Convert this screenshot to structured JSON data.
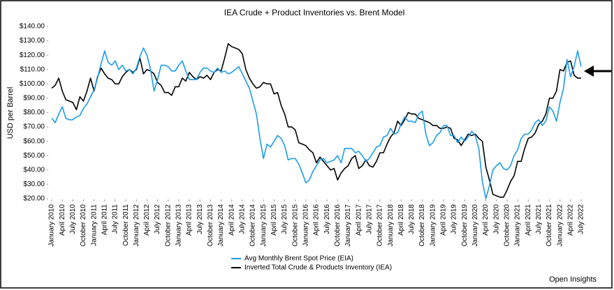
{
  "chart_data": {
    "type": "line",
    "title": "IEA Crude + Product Inventories vs. Brent Model",
    "y_label": "USD per Barrel",
    "annotation": "Open Insights",
    "categories": [
      "January 2010",
      null,
      null,
      "April 2010",
      null,
      null,
      "July 2010",
      null,
      null,
      "October 2010",
      null,
      null,
      "January 2011",
      null,
      null,
      "April 2011",
      null,
      null,
      "July 2011",
      null,
      null,
      "October 2011",
      null,
      null,
      "January 2012",
      null,
      null,
      "April 2012",
      null,
      null,
      "July 2012",
      null,
      null,
      "October 2012",
      null,
      null,
      "January 2013",
      null,
      null,
      "April 2013",
      null,
      null,
      "July 2013",
      null,
      null,
      "October 2013",
      null,
      null,
      "January 2014",
      null,
      null,
      "April 2014",
      null,
      null,
      "July 2014",
      null,
      null,
      "October 2014",
      null,
      null,
      "January 2015",
      null,
      null,
      "April 2015",
      null,
      null,
      "July 2015",
      null,
      null,
      "October 2015",
      null,
      null,
      "January 2016",
      null,
      null,
      "April 2016",
      null,
      null,
      "July 2016",
      null,
      null,
      "October 2016",
      null,
      null,
      "January 2017",
      null,
      null,
      "April 2017",
      null,
      null,
      "July 2017",
      null,
      null,
      "October 2017",
      null,
      null,
      "January 2018",
      null,
      null,
      "April 2018",
      null,
      null,
      "July 2018",
      null,
      null,
      "October 2018",
      null,
      null,
      "January 2019",
      null,
      null,
      "April 2019",
      null,
      null,
      "July 2019",
      null,
      null,
      "October 2019",
      null,
      null,
      "January 2020",
      null,
      null,
      "April 2020",
      null,
      null,
      "July 2020",
      null,
      null,
      "October 2020",
      null,
      null,
      "January 2021",
      null,
      null,
      "April 2021",
      null,
      null,
      "July 2021",
      null,
      null,
      "October 2021",
      null,
      null,
      "January 2022",
      null,
      null,
      "April 2022",
      null,
      null,
      "July 2022"
    ],
    "series": [
      {
        "name": "Avg Monthly Brent Spot Price (EIA)",
        "color": "#1b9ce8",
        "values": [
          76,
          73,
          79,
          84,
          76,
          75,
          75,
          77,
          78,
          83,
          86,
          91,
          96,
          104,
          114,
          123,
          115,
          113,
          116,
          110,
          113,
          109,
          110,
          107,
          111,
          119,
          125,
          120,
          110,
          95,
          103,
          113,
          113,
          112,
          109,
          109,
          113,
          116,
          109,
          103,
          103,
          103,
          108,
          111,
          111,
          109,
          108,
          111,
          108,
          109,
          107,
          108,
          110,
          112,
          107,
          102,
          97,
          88,
          79,
          62,
          48,
          58,
          56,
          60,
          64,
          62,
          57,
          47,
          48,
          48,
          44,
          38,
          31,
          33,
          39,
          43,
          47,
          48,
          45,
          46,
          47,
          50,
          45,
          55,
          55,
          55,
          52,
          53,
          50,
          46,
          48,
          52,
          56,
          57,
          63,
          64,
          69,
          65,
          66,
          72,
          77,
          74,
          74,
          73,
          79,
          81,
          65,
          57,
          59,
          64,
          66,
          71,
          71,
          64,
          64,
          59,
          63,
          60,
          63,
          67,
          64,
          55,
          32,
          20,
          29,
          40,
          43,
          45,
          41,
          40,
          43,
          50,
          54,
          62,
          65,
          65,
          68,
          73,
          75,
          71,
          74,
          84,
          81,
          74,
          87,
          97,
          117,
          105,
          112,
          123,
          112
        ]
      },
      {
        "name": "Inverted Total Crude & Products Inventory (IEA)",
        "color": "#000000",
        "values": [
          97,
          99,
          104,
          95,
          89,
          88,
          87,
          82,
          91,
          88,
          95,
          104,
          95,
          105,
          111,
          107,
          104,
          103,
          100,
          100,
          105,
          108,
          110,
          108,
          110,
          118,
          107,
          110,
          109,
          107,
          101,
          99,
          94,
          94,
          92,
          98,
          98,
          104,
          102,
          108,
          105,
          103,
          105,
          104,
          106,
          103,
          108,
          110,
          109,
          118,
          128,
          126,
          125,
          124,
          121,
          110,
          104,
          100,
          97,
          98,
          101,
          100,
          100,
          93,
          94,
          85,
          79,
          70,
          70,
          68,
          59,
          58,
          57,
          54,
          52,
          45,
          49,
          46,
          43,
          40,
          41,
          33,
          38,
          41,
          43,
          48,
          50,
          41,
          43,
          47,
          43,
          42,
          46,
          52,
          52,
          58,
          63,
          66,
          74,
          71,
          75,
          80,
          79,
          79,
          76,
          75,
          74,
          73,
          71,
          71,
          69,
          69,
          70,
          69,
          62,
          61,
          57,
          61,
          65,
          64,
          65,
          62,
          60,
          42,
          33,
          23,
          22,
          21,
          21,
          26,
          32,
          36,
          46,
          46,
          55,
          62,
          63,
          66,
          72,
          74,
          79,
          90,
          90,
          95,
          110,
          109,
          115,
          116,
          106,
          104,
          104
        ]
      }
    ],
    "ylim": [
      20,
      140
    ],
    "yticks": [
      {
        "value": 20,
        "label": "$20.00"
      },
      {
        "value": 30,
        "label": "$30.00"
      },
      {
        "value": 40,
        "label": "$40.00"
      },
      {
        "value": 50,
        "label": "$50.00"
      },
      {
        "value": 60,
        "label": "$60.00"
      },
      {
        "value": 70,
        "label": "$70.00"
      },
      {
        "value": 80,
        "label": "$80.00"
      },
      {
        "value": 90,
        "label": "$90.00"
      },
      {
        "value": 100,
        "label": "$100.00"
      },
      {
        "value": 110,
        "label": "$110.00"
      },
      {
        "value": 120,
        "label": "$120.00"
      },
      {
        "value": 130,
        "label": "$130.00"
      },
      {
        "value": 140,
        "label": "$140.00"
      }
    ],
    "legend": "bottom"
  }
}
